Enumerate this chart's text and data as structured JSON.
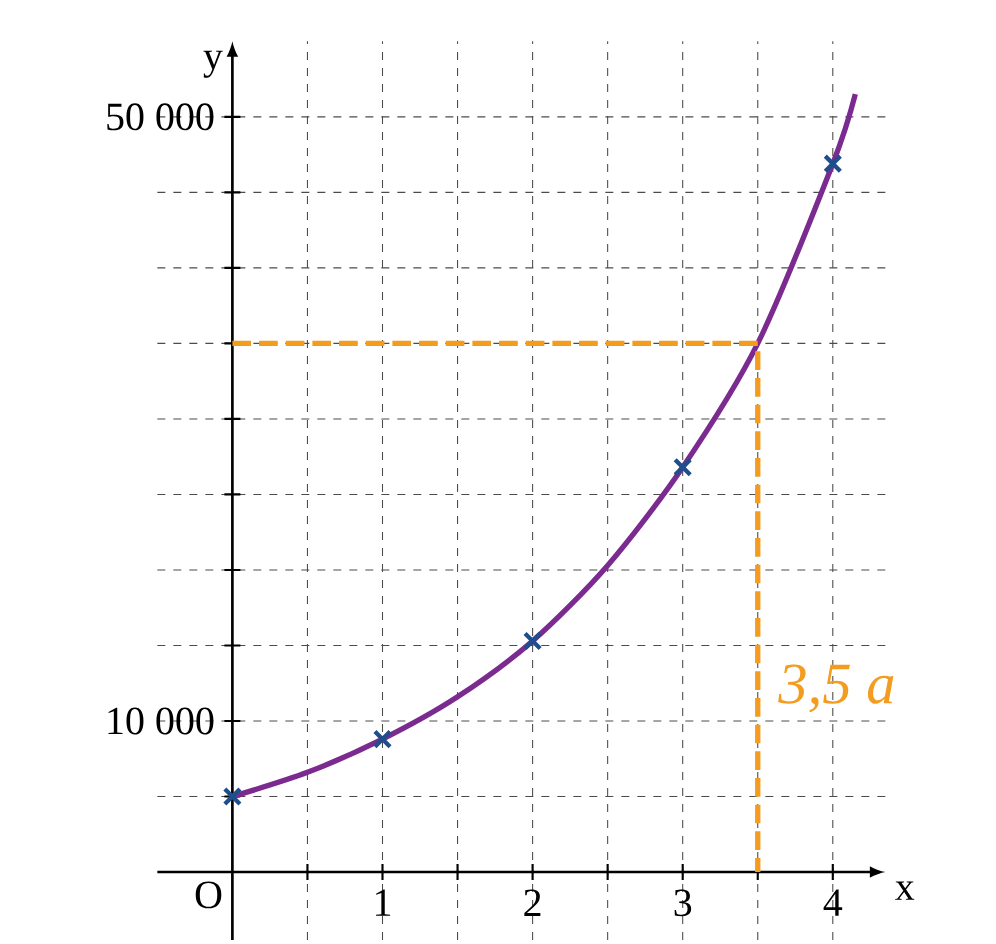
{
  "chart_data": {
    "type": "line",
    "xlabel": "x",
    "ylabel": "y",
    "xlim": [
      -0.5,
      4.35
    ],
    "ylim": [
      -4500,
      55000
    ],
    "xticks": [
      {
        "value": 0.5,
        "label": null
      },
      1,
      {
        "value": 1.5,
        "label": null
      },
      2,
      {
        "value": 2.5,
        "label": null
      },
      3,
      {
        "value": 3.5,
        "label": null
      },
      4
    ],
    "yticks": [
      {
        "value": 5000,
        "label": null
      },
      {
        "value": 10000,
        "label": "10 000"
      },
      {
        "value": 15000,
        "label": null
      },
      {
        "value": 20000,
        "label": null
      },
      {
        "value": 25000,
        "label": null
      },
      {
        "value": 30000,
        "label": null
      },
      {
        "value": 35000,
        "label": null
      },
      {
        "value": 40000,
        "label": null
      },
      {
        "value": 45000,
        "label": null
      },
      {
        "value": 50000,
        "label": "50 000"
      }
    ],
    "grid": true,
    "series": [
      {
        "color": "#7b2a8f",
        "x": [
          0,
          0.5,
          1,
          1.5,
          2,
          2.5,
          3,
          3.5,
          4,
          4.15
        ],
        "values": [
          5000,
          6600,
          8800,
          11600,
          15300,
          20300,
          26800,
          35000,
          46900,
          51500
        ]
      },
      {
        "type": "scatter",
        "color": "#1f4e8c",
        "marker": "cross",
        "x": [
          0,
          1,
          2,
          3,
          4
        ],
        "values": [
          5000,
          8800,
          15300,
          26800,
          46900
        ]
      },
      {
        "type": "line",
        "color": "#f39c1f",
        "line_style": "dashed",
        "x": [
          0,
          3.5,
          3.5
        ],
        "values": [
          35000,
          35000,
          0
        ]
      }
    ],
    "annotations": [
      "O",
      "3,5 a"
    ]
  }
}
